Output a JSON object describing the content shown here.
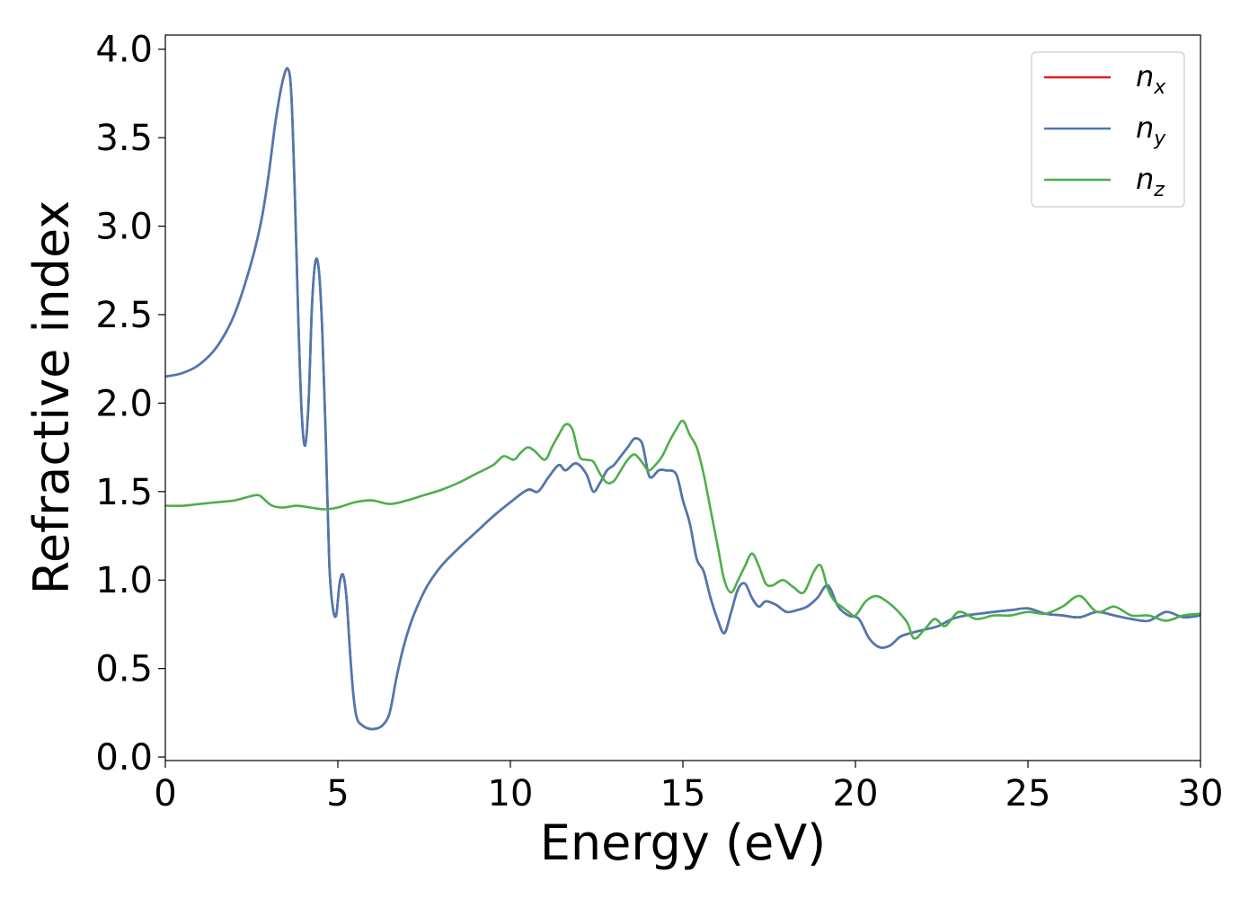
{
  "chart_data": {
    "type": "line",
    "xlabel": "Energy (eV)",
    "ylabel": "Refractive index",
    "xlim": [
      0,
      30
    ],
    "ylim": [
      -0.02,
      4.08
    ],
    "xticks": [
      0,
      5,
      10,
      15,
      20,
      25,
      30
    ],
    "xtick_labels": [
      "0",
      "5",
      "10",
      "15",
      "20",
      "25",
      "30"
    ],
    "yticks": [
      0.0,
      0.5,
      1.0,
      1.5,
      2.0,
      2.5,
      3.0,
      3.5,
      4.0
    ],
    "ytick_labels": [
      "0.0",
      "0.5",
      "1.0",
      "1.5",
      "2.0",
      "2.5",
      "3.0",
      "3.5",
      "4.0"
    ],
    "grid": false,
    "legend_position": "top-right",
    "series": [
      {
        "name": "n",
        "subscript": "x",
        "color": "#e41a1c",
        "x": [
          0,
          0.5,
          1,
          1.5,
          2,
          2.5,
          2.8,
          3.0,
          3.2,
          3.4,
          3.55,
          3.65,
          3.75,
          3.85,
          3.95,
          4.05,
          4.15,
          4.25,
          4.35,
          4.45,
          4.55,
          4.65,
          4.75,
          4.85,
          4.95,
          5.05,
          5.15,
          5.25,
          5.35,
          5.45,
          5.55,
          5.7,
          5.9,
          6.1,
          6.3,
          6.5,
          6.7,
          6.9,
          7.1,
          7.3,
          7.6,
          8.0,
          8.5,
          9.0,
          9.5,
          10.0,
          10.5,
          10.8,
          11.1,
          11.4,
          11.6,
          11.9,
          12.2,
          12.4,
          12.6,
          12.8,
          13.0,
          13.2,
          13.4,
          13.6,
          13.8,
          13.9,
          14.0,
          14.1,
          14.3,
          14.5,
          14.8,
          15.0,
          15.2,
          15.4,
          15.6,
          15.8,
          16.0,
          16.2,
          16.4,
          16.6,
          16.8,
          17.0,
          17.2,
          17.4,
          17.7,
          18.0,
          18.3,
          18.6,
          18.9,
          19.2,
          19.5,
          19.8,
          20.1,
          20.4,
          20.7,
          21.0,
          21.3,
          21.6,
          22.0,
          22.4,
          22.8,
          23.2,
          23.6,
          24.0,
          24.5,
          25.0,
          25.5,
          26.0,
          26.5,
          27.0,
          27.5,
          28.0,
          28.5,
          29.0,
          29.5,
          30.0
        ],
        "y": [
          2.15,
          2.17,
          2.22,
          2.32,
          2.5,
          2.8,
          3.05,
          3.3,
          3.6,
          3.82,
          3.89,
          3.75,
          3.2,
          2.5,
          1.95,
          1.76,
          2.0,
          2.55,
          2.8,
          2.75,
          2.4,
          1.8,
          1.1,
          0.85,
          0.8,
          0.98,
          1.03,
          0.9,
          0.6,
          0.35,
          0.22,
          0.18,
          0.16,
          0.16,
          0.18,
          0.25,
          0.45,
          0.62,
          0.75,
          0.85,
          0.97,
          1.08,
          1.18,
          1.27,
          1.36,
          1.44,
          1.51,
          1.5,
          1.58,
          1.65,
          1.62,
          1.66,
          1.6,
          1.5,
          1.55,
          1.62,
          1.65,
          1.7,
          1.75,
          1.8,
          1.78,
          1.7,
          1.6,
          1.58,
          1.62,
          1.62,
          1.6,
          1.45,
          1.32,
          1.12,
          1.05,
          0.9,
          0.78,
          0.7,
          0.82,
          0.95,
          0.98,
          0.9,
          0.85,
          0.88,
          0.86,
          0.82,
          0.83,
          0.85,
          0.9,
          0.97,
          0.85,
          0.8,
          0.78,
          0.67,
          0.62,
          0.63,
          0.68,
          0.7,
          0.72,
          0.74,
          0.78,
          0.8,
          0.81,
          0.82,
          0.83,
          0.84,
          0.81,
          0.8,
          0.79,
          0.82,
          0.8,
          0.78,
          0.77,
          0.82,
          0.79,
          0.8
        ]
      },
      {
        "name": "n",
        "subscript": "y",
        "color": "#4a79b4",
        "x": [
          0,
          0.5,
          1,
          1.5,
          2,
          2.5,
          2.8,
          3.0,
          3.2,
          3.4,
          3.55,
          3.65,
          3.75,
          3.85,
          3.95,
          4.05,
          4.15,
          4.25,
          4.35,
          4.45,
          4.55,
          4.65,
          4.75,
          4.85,
          4.95,
          5.05,
          5.15,
          5.25,
          5.35,
          5.45,
          5.55,
          5.7,
          5.9,
          6.1,
          6.3,
          6.5,
          6.7,
          6.9,
          7.1,
          7.3,
          7.6,
          8.0,
          8.5,
          9.0,
          9.5,
          10.0,
          10.5,
          10.8,
          11.1,
          11.4,
          11.6,
          11.9,
          12.2,
          12.4,
          12.6,
          12.8,
          13.0,
          13.2,
          13.4,
          13.6,
          13.8,
          13.9,
          14.0,
          14.1,
          14.3,
          14.5,
          14.8,
          15.0,
          15.2,
          15.4,
          15.6,
          15.8,
          16.0,
          16.2,
          16.4,
          16.6,
          16.8,
          17.0,
          17.2,
          17.4,
          17.7,
          18.0,
          18.3,
          18.6,
          18.9,
          19.2,
          19.5,
          19.8,
          20.1,
          20.4,
          20.7,
          21.0,
          21.3,
          21.6,
          22.0,
          22.4,
          22.8,
          23.2,
          23.6,
          24.0,
          24.5,
          25.0,
          25.5,
          26.0,
          26.5,
          27.0,
          27.5,
          28.0,
          28.5,
          29.0,
          29.5,
          30.0
        ],
        "y": [
          2.15,
          2.17,
          2.22,
          2.32,
          2.5,
          2.8,
          3.05,
          3.3,
          3.6,
          3.82,
          3.89,
          3.75,
          3.2,
          2.5,
          1.95,
          1.76,
          2.0,
          2.55,
          2.8,
          2.75,
          2.4,
          1.8,
          1.1,
          0.85,
          0.8,
          0.98,
          1.03,
          0.9,
          0.6,
          0.35,
          0.22,
          0.18,
          0.16,
          0.16,
          0.18,
          0.25,
          0.45,
          0.62,
          0.75,
          0.85,
          0.97,
          1.08,
          1.18,
          1.27,
          1.36,
          1.44,
          1.51,
          1.5,
          1.58,
          1.65,
          1.62,
          1.66,
          1.6,
          1.5,
          1.55,
          1.62,
          1.65,
          1.7,
          1.75,
          1.8,
          1.78,
          1.7,
          1.6,
          1.58,
          1.62,
          1.62,
          1.6,
          1.45,
          1.32,
          1.12,
          1.05,
          0.9,
          0.78,
          0.7,
          0.82,
          0.95,
          0.98,
          0.9,
          0.85,
          0.88,
          0.86,
          0.82,
          0.83,
          0.85,
          0.9,
          0.97,
          0.85,
          0.8,
          0.78,
          0.67,
          0.62,
          0.63,
          0.68,
          0.7,
          0.72,
          0.74,
          0.78,
          0.8,
          0.81,
          0.82,
          0.83,
          0.84,
          0.81,
          0.8,
          0.79,
          0.82,
          0.8,
          0.78,
          0.77,
          0.82,
          0.79,
          0.8
        ]
      },
      {
        "name": "n",
        "subscript": "z",
        "color": "#4daf4a",
        "x": [
          0,
          0.5,
          1,
          1.5,
          2,
          2.4,
          2.7,
          2.9,
          3.1,
          3.4,
          3.8,
          4.2,
          4.6,
          5.0,
          5.5,
          6.0,
          6.5,
          7.0,
          7.5,
          8.0,
          8.5,
          9.0,
          9.5,
          9.8,
          10.1,
          10.3,
          10.5,
          10.7,
          11.0,
          11.2,
          11.4,
          11.6,
          11.8,
          12.0,
          12.2,
          12.4,
          12.6,
          12.8,
          13.0,
          13.2,
          13.4,
          13.6,
          13.8,
          14.0,
          14.2,
          14.4,
          14.6,
          14.8,
          15.0,
          15.2,
          15.4,
          15.6,
          15.8,
          16.0,
          16.2,
          16.4,
          16.6,
          16.8,
          17.0,
          17.2,
          17.4,
          17.6,
          17.9,
          18.2,
          18.5,
          18.8,
          19.0,
          19.2,
          19.4,
          19.6,
          19.8,
          20.0,
          20.3,
          20.6,
          20.9,
          21.2,
          21.5,
          21.7,
          22.0,
          22.3,
          22.6,
          23.0,
          23.5,
          24.0,
          24.5,
          25.0,
          25.5,
          26.0,
          26.5,
          27.0,
          27.5,
          28.0,
          28.5,
          29.0,
          29.5,
          30.0
        ],
        "y": [
          1.42,
          1.42,
          1.43,
          1.44,
          1.45,
          1.47,
          1.48,
          1.45,
          1.42,
          1.41,
          1.42,
          1.41,
          1.4,
          1.41,
          1.44,
          1.45,
          1.43,
          1.45,
          1.48,
          1.51,
          1.55,
          1.6,
          1.65,
          1.7,
          1.68,
          1.72,
          1.75,
          1.73,
          1.68,
          1.75,
          1.82,
          1.88,
          1.85,
          1.7,
          1.68,
          1.67,
          1.6,
          1.55,
          1.56,
          1.62,
          1.68,
          1.71,
          1.67,
          1.62,
          1.65,
          1.7,
          1.78,
          1.85,
          1.9,
          1.82,
          1.75,
          1.6,
          1.4,
          1.2,
          1.0,
          0.93,
          1.0,
          1.08,
          1.15,
          1.08,
          0.98,
          0.97,
          1.0,
          0.96,
          0.93,
          1.05,
          1.08,
          0.95,
          0.88,
          0.85,
          0.82,
          0.8,
          0.88,
          0.91,
          0.88,
          0.83,
          0.76,
          0.67,
          0.72,
          0.78,
          0.74,
          0.82,
          0.78,
          0.8,
          0.8,
          0.82,
          0.81,
          0.85,
          0.91,
          0.82,
          0.85,
          0.8,
          0.8,
          0.77,
          0.8,
          0.81
        ]
      }
    ]
  }
}
